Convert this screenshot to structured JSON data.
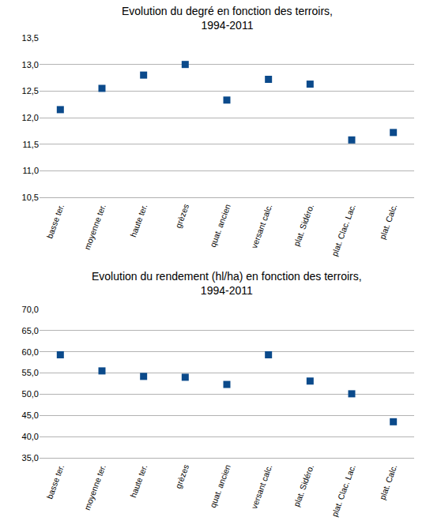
{
  "chart_data": [
    {
      "type": "scatter",
      "title": "Evolution du degré en fonction des terroirs, 1994-2011",
      "categories": [
        "basse ter.",
        "moyenne ter.",
        "haute ter.",
        "grèzes",
        "quat. ancien",
        "versant calc.",
        "plat. Sidéro.",
        "plat. Clac. Lac.",
        "plat. Calc."
      ],
      "values": [
        12.15,
        12.55,
        12.8,
        13.0,
        12.33,
        12.72,
        12.63,
        11.58,
        11.72
      ],
      "color": "#0b4a8b",
      "marker": "square",
      "grid": true,
      "ylim": [
        10.5,
        13.5
      ],
      "yticks": [
        {
          "value": 10.5,
          "label": "10,5"
        },
        {
          "value": 11,
          "label": "11,0"
        },
        {
          "value": 11.5,
          "label": "11,5"
        },
        {
          "value": 12,
          "label": "12,0"
        },
        {
          "value": 12.5,
          "label": "12,5"
        },
        {
          "value": 13,
          "label": "13,0"
        },
        {
          "value": 13.5,
          "label": "13,5"
        }
      ]
    },
    {
      "type": "scatter",
      "title": "Evolution du rendement (hl/ha) en fonction des terroirs, 1994-2011",
      "categories": [
        "basse ter.",
        "moyenne ter.",
        "haute ter.",
        "grèzes",
        "quat. ancien",
        "versant calc.",
        "plat. Sidéro.",
        "plat. Clac. Lac.",
        "plat. Calc."
      ],
      "values": [
        59.3,
        55.5,
        54.2,
        54.0,
        52.3,
        59.3,
        53.1,
        50.1,
        43.5
      ],
      "color": "#0b4a8b",
      "marker": "square",
      "grid": true,
      "ylim": [
        35,
        70
      ],
      "yticks": [
        {
          "value": 35,
          "label": "35,0"
        },
        {
          "value": 40,
          "label": "40,0"
        },
        {
          "value": 45,
          "label": "45,0"
        },
        {
          "value": 50,
          "label": "50,0"
        },
        {
          "value": 55,
          "label": "55,0"
        },
        {
          "value": 60,
          "label": "60,0"
        },
        {
          "value": 65,
          "label": "65,0"
        },
        {
          "value": 70,
          "label": "70,0"
        }
      ]
    }
  ]
}
